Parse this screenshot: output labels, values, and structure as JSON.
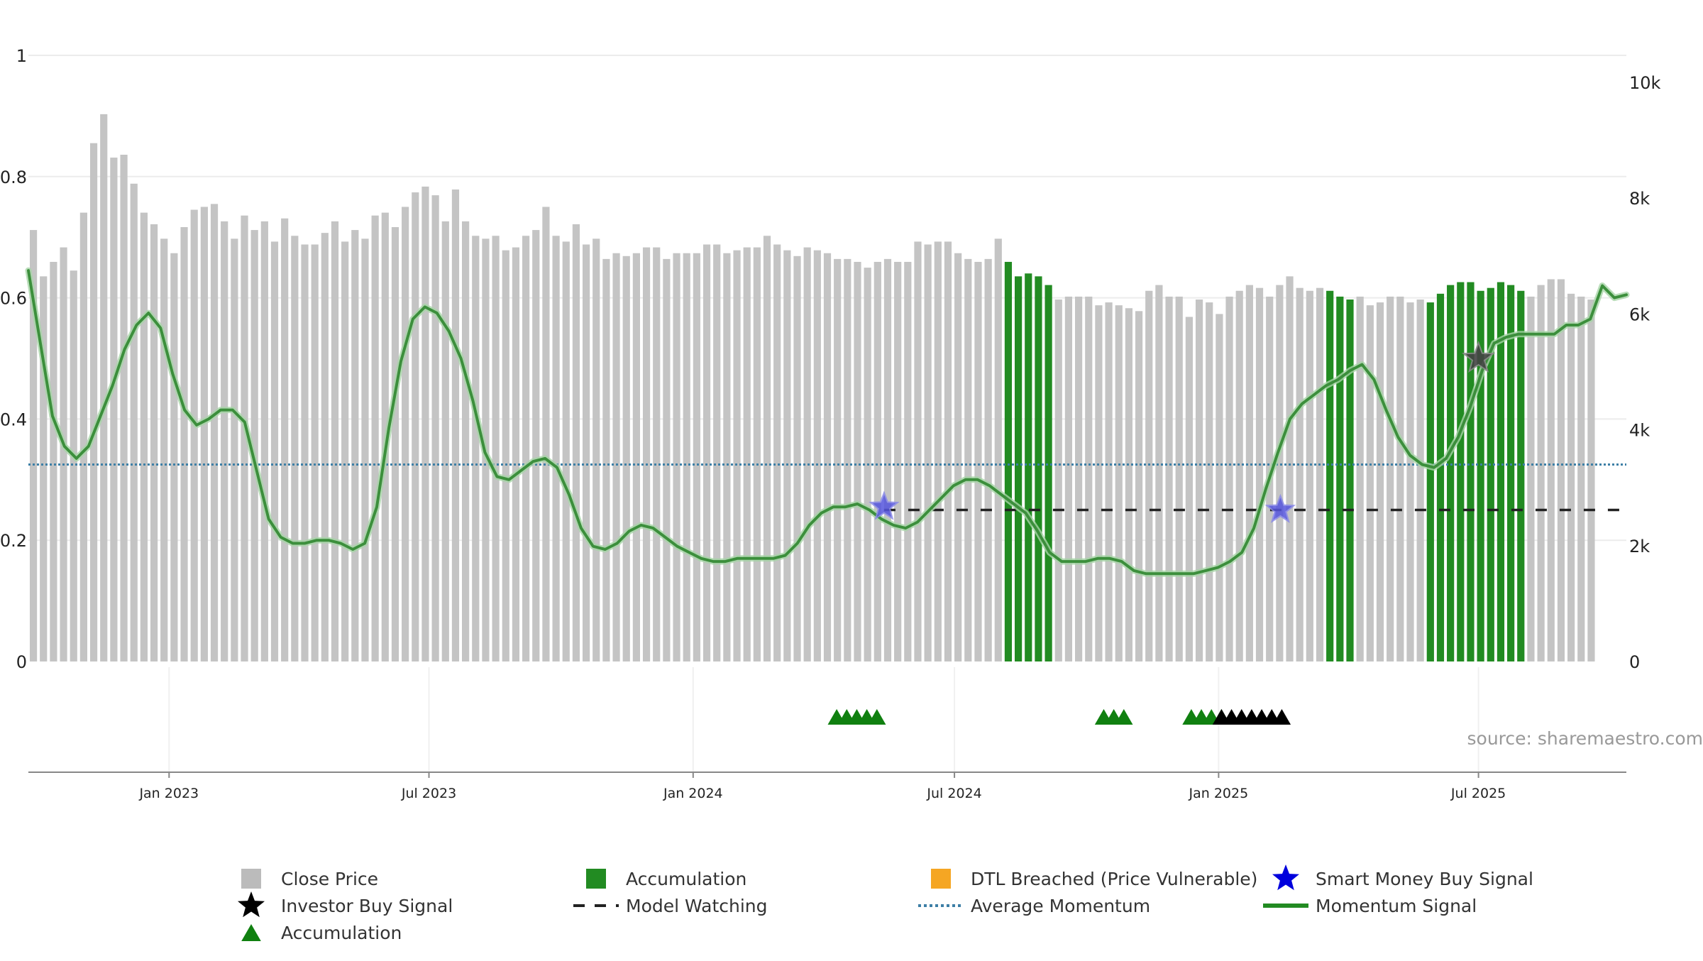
{
  "chart_data": {
    "type": "bar",
    "title": "",
    "xlabel": "",
    "ylabel": "",
    "x_start": "2022-09-25",
    "x_step_days": 7,
    "x_tick_labels": [
      {
        "date": "2023-01-01",
        "label": "Jan 2023"
      },
      {
        "date": "2023-07-01",
        "label": "Jul 2023"
      },
      {
        "date": "2024-01-01",
        "label": "Jan 2024"
      },
      {
        "date": "2024-07-01",
        "label": "Jul 2024"
      },
      {
        "date": "2025-01-01",
        "label": "Jan 2025"
      },
      {
        "date": "2025-07-01",
        "label": "Jul 2025"
      }
    ],
    "left_axis": {
      "ylim": [
        0,
        1
      ],
      "ticks": [
        "0",
        "0.2",
        "0.4",
        "0.6",
        "0.8",
        "1"
      ],
      "tick_values": [
        0,
        0.2,
        0.4,
        0.6,
        0.8,
        1.0
      ]
    },
    "right_axis": {
      "ylim": [
        0,
        10000
      ],
      "ticks": [
        "0",
        "2k",
        "4k",
        "6k",
        "8k",
        "10k"
      ],
      "tick_values": [
        0,
        2000,
        4000,
        6000,
        8000,
        10000
      ]
    },
    "series": [
      {
        "name": "Close Price",
        "kind": "bar",
        "axis": "right",
        "color": "#c4c4c4",
        "accumulation_color": "#228b22",
        "values": [
          7450,
          6650,
          6900,
          7150,
          6750,
          7750,
          8950,
          9450,
          8700,
          8750,
          8250,
          7750,
          7550,
          7300,
          7050,
          7500,
          7800,
          7850,
          7900,
          7600,
          7300,
          7700,
          7450,
          7600,
          7250,
          7650,
          7350,
          7200,
          7200,
          7400,
          7600,
          7250,
          7450,
          7300,
          7700,
          7750,
          7500,
          7850,
          8100,
          8200,
          8050,
          7600,
          8150,
          7600,
          7350,
          7300,
          7350,
          7100,
          7150,
          7350,
          7450,
          7850,
          7350,
          7250,
          7550,
          7200,
          7300,
          6950,
          7050,
          7000,
          7050,
          7150,
          7150,
          6950,
          7050,
          7050,
          7050,
          7200,
          7200,
          7050,
          7100,
          7150,
          7150,
          7350,
          7200,
          7100,
          7000,
          7150,
          7100,
          7050,
          6950,
          6950,
          6900,
          6800,
          6900,
          6950,
          6900,
          6900,
          7250,
          7200,
          7250,
          7250,
          7050,
          6950,
          6900,
          6950,
          7300,
          6900,
          6650,
          6700,
          6650,
          6500,
          6250,
          6300,
          6300,
          6300,
          6150,
          6200,
          6150,
          6100,
          6050,
          6400,
          6500,
          6300,
          6300,
          5950,
          6250,
          6200,
          6000,
          6300,
          6400,
          6500,
          6450,
          6300,
          6500,
          6650,
          6450,
          6400,
          6450,
          6400,
          6300,
          6250,
          6300,
          6150,
          6200,
          6300,
          6300,
          6200,
          6250,
          6200,
          6350,
          6500,
          6550,
          6550,
          6400,
          6450,
          6550,
          6500,
          6400,
          6300,
          6500,
          6600,
          6600,
          6350,
          6300,
          6250
        ],
        "accumulation_indices": [
          97,
          98,
          99,
          100,
          101,
          129,
          130,
          131,
          139,
          140,
          141,
          142,
          143,
          144,
          145,
          146,
          147,
          148
        ]
      },
      {
        "name": "Momentum Signal",
        "kind": "line",
        "axis": "left",
        "color": "#228b22",
        "values": [
          0.645,
          0.525,
          0.405,
          0.355,
          0.335,
          0.355,
          0.405,
          0.455,
          0.515,
          0.555,
          0.575,
          0.55,
          0.475,
          0.415,
          0.39,
          0.4,
          0.415,
          0.415,
          0.395,
          0.315,
          0.235,
          0.205,
          0.195,
          0.195,
          0.2,
          0.2,
          0.195,
          0.185,
          0.195,
          0.255,
          0.385,
          0.495,
          0.565,
          0.585,
          0.575,
          0.545,
          0.5,
          0.43,
          0.345,
          0.305,
          0.3,
          0.315,
          0.33,
          0.335,
          0.32,
          0.275,
          0.22,
          0.19,
          0.185,
          0.195,
          0.215,
          0.225,
          0.22,
          0.205,
          0.19,
          0.18,
          0.17,
          0.165,
          0.165,
          0.17,
          0.17,
          0.17,
          0.17,
          0.175,
          0.195,
          0.225,
          0.245,
          0.255,
          0.255,
          0.26,
          0.25,
          0.235,
          0.225,
          0.22,
          0.23,
          0.25,
          0.27,
          0.29,
          0.3,
          0.3,
          0.29,
          0.275,
          0.26,
          0.245,
          0.215,
          0.18,
          0.165,
          0.165,
          0.165,
          0.17,
          0.17,
          0.165,
          0.15,
          0.145,
          0.145,
          0.145,
          0.145,
          0.145,
          0.15,
          0.155,
          0.165,
          0.18,
          0.22,
          0.285,
          0.345,
          0.4,
          0.425,
          0.44,
          0.455,
          0.465,
          0.48,
          0.49,
          0.465,
          0.415,
          0.37,
          0.34,
          0.325,
          0.32,
          0.335,
          0.37,
          0.42,
          0.48,
          0.525,
          0.535,
          0.54,
          0.54,
          0.54,
          0.54,
          0.555,
          0.555,
          0.565,
          0.62,
          0.6,
          0.605
        ]
      },
      {
        "name": "Average Momentum",
        "kind": "hline",
        "axis": "left",
        "color": "#3d7fa6",
        "value": 0.325
      },
      {
        "name": "Model Watching",
        "kind": "hline-segment",
        "axis": "left",
        "color": "#222222",
        "value": 0.25,
        "start_date": "2024-05-13",
        "end_date": "2025-10-12"
      }
    ],
    "markers": {
      "smart_money_buy": {
        "name": "Smart Money Buy Signal",
        "color": "#5555dd",
        "points": [
          {
            "date": "2024-05-13",
            "y": 0.255
          },
          {
            "date": "2025-02-13",
            "y": 0.25
          }
        ]
      },
      "investor_buy": {
        "name": "Investor Buy Signal",
        "color": "#444444",
        "points": [
          {
            "date": "2025-07-01",
            "y": 0.5
          }
        ]
      },
      "accumulation_triangles": {
        "name": "Accumulation",
        "color": "#108010",
        "dates": [
          "2024-04-10",
          "2024-04-17",
          "2024-04-24",
          "2024-05-01",
          "2024-05-08",
          "2024-10-13",
          "2024-10-20",
          "2024-10-27",
          "2024-12-13",
          "2024-12-20",
          "2024-12-27",
          "2025-01-03"
        ]
      },
      "investor_triangles": {
        "color": "#000000",
        "dates": [
          "2025-01-03",
          "2025-01-10",
          "2025-01-17",
          "2025-01-24",
          "2025-01-31",
          "2025-02-07",
          "2025-02-14"
        ]
      }
    },
    "legend": {
      "placement": "bottom",
      "items": [
        {
          "label": "Close Price",
          "symbol": "square",
          "color": "#bbbbbb"
        },
        {
          "label": "Accumulation",
          "symbol": "square",
          "color": "#228b22"
        },
        {
          "label": "DTL Breached (Price Vulnerable)",
          "symbol": "square",
          "color": "#f5a623"
        },
        {
          "label": "Smart Money Buy Signal",
          "symbol": "star",
          "color": "#0000dd"
        },
        {
          "label": "Investor Buy Signal",
          "symbol": "star",
          "color": "#000000"
        },
        {
          "label": "Model Watching",
          "symbol": "dash",
          "color": "#222222"
        },
        {
          "label": "Average Momentum",
          "symbol": "dot",
          "color": "#3d7fa6"
        },
        {
          "label": "Momentum Signal",
          "symbol": "line",
          "color": "#228b22"
        },
        {
          "label": "Accumulation",
          "symbol": "triangle",
          "color": "#108010"
        }
      ]
    },
    "source": "source: sharemaestro.com",
    "grid": true
  }
}
